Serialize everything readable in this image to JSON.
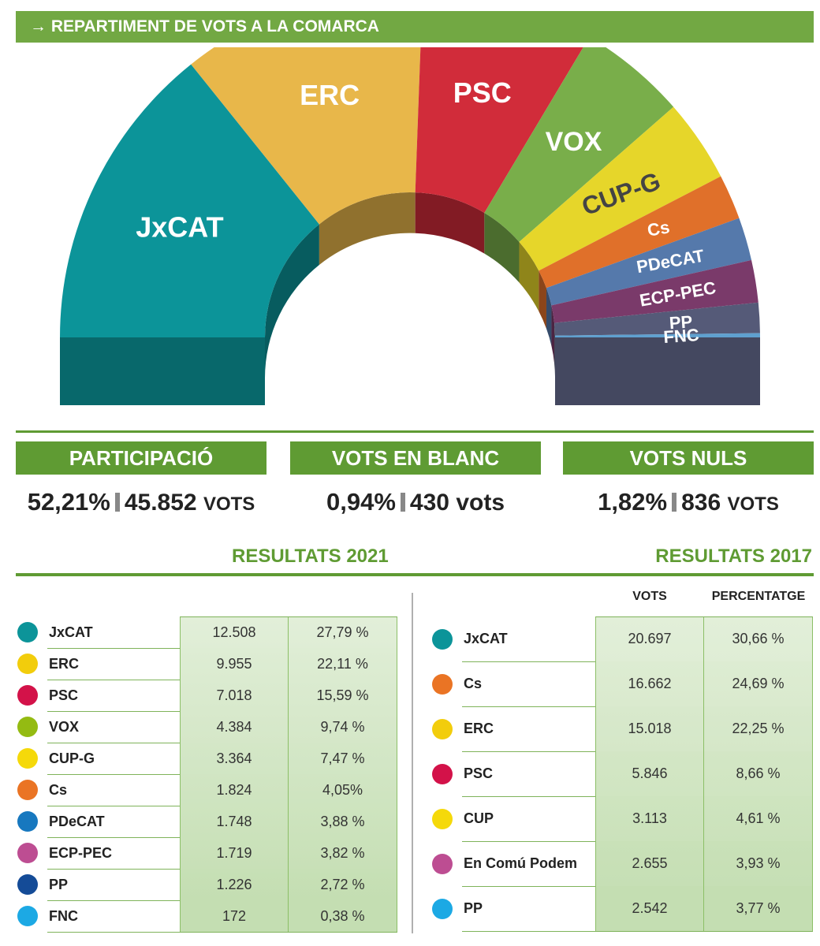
{
  "header": {
    "title": "→ REPARTIMENT DE VOTS A LA COMARCA"
  },
  "chart_data": {
    "type": "pie",
    "shape": "half-donut",
    "title": "REPARTIMENT DE VOTS A LA COMARCA",
    "categories": [
      "JxCAT",
      "ERC",
      "PSC",
      "VOX",
      "CUP-G",
      "Cs",
      "PDeCAT",
      "ECP-PEC",
      "PP",
      "FNC"
    ],
    "values": [
      27.79,
      22.11,
      15.59,
      9.74,
      7.47,
      4.05,
      3.88,
      3.82,
      2.72,
      0.38
    ],
    "colors": [
      "#0c9499",
      "#e8b74a",
      "#d12c3a",
      "#79ae4a",
      "#e6d62a",
      "#e0702a",
      "#5579ab",
      "#7a3a6a",
      "#555a78",
      "#5fa0cf"
    ],
    "label_colors": [
      "#ffffff",
      "#ffffff",
      "#ffffff",
      "#ffffff",
      "#444444",
      "#ffffff",
      "#ffffff",
      "#ffffff",
      "#ffffff",
      "#ffffff"
    ]
  },
  "stats": {
    "participacio": {
      "label": "PARTICIPACIÓ",
      "pct": "52,21%",
      "num": "45.852",
      "unit": "VOTS"
    },
    "blanc": {
      "label": "VOTS EN BLANC",
      "pct": "0,94%",
      "num": "430",
      "unit": "vots"
    },
    "nuls": {
      "label": "VOTS NULS",
      "pct": "1,82%",
      "num": "836",
      "unit": "VOTS"
    }
  },
  "results2021": {
    "title": "RESULTATS 2021",
    "rows": [
      {
        "party": "JxCAT",
        "votes": "12.508",
        "pct": "27,79 %",
        "color": "#0c9499"
      },
      {
        "party": "ERC",
        "votes": "9.955",
        "pct": "22,11 %",
        "color": "#f2cd0c"
      },
      {
        "party": "PSC",
        "votes": "7.018",
        "pct": "15,59 %",
        "color": "#d31249"
      },
      {
        "party": "VOX",
        "votes": "4.384",
        "pct": "9,74 %",
        "color": "#94bb12"
      },
      {
        "party": "CUP-G",
        "votes": "3.364",
        "pct": "7,47 %",
        "color": "#f5d90a"
      },
      {
        "party": "Cs",
        "votes": "1.824",
        "pct": "4,05%",
        "color": "#ea7424"
      },
      {
        "party": "PDeCAT",
        "votes": "1.748",
        "pct": "3,88 %",
        "color": "#1778bf"
      },
      {
        "party": "ECP-PEC",
        "votes": "1.719",
        "pct": "3,82 %",
        "color": "#bd4d92"
      },
      {
        "party": "PP",
        "votes": "1.226",
        "pct": "2,72 %",
        "color": "#144b97"
      },
      {
        "party": "FNC",
        "votes": "172",
        "pct": "0,38 %",
        "color": "#1ca9e4"
      }
    ]
  },
  "results2017": {
    "title": "RESULTATS 2017",
    "col_votes": "VOTS",
    "col_pct": "PERCENTATGE",
    "rows": [
      {
        "party": "JxCAT",
        "votes": "20.697",
        "pct": "30,66 %",
        "color": "#0c9499"
      },
      {
        "party": "Cs",
        "votes": "16.662",
        "pct": "24,69 %",
        "color": "#ea7424"
      },
      {
        "party": "ERC",
        "votes": "15.018",
        "pct": "22,25 %",
        "color": "#f2cd0c"
      },
      {
        "party": "PSC",
        "votes": "5.846",
        "pct": "8,66 %",
        "color": "#d31249"
      },
      {
        "party": "CUP",
        "votes": "3.113",
        "pct": "4,61 %",
        "color": "#f5d90a"
      },
      {
        "party": "En Comú Podem",
        "votes": "2.655",
        "pct": "3,93 %",
        "color": "#bd4d92"
      },
      {
        "party": "PP",
        "votes": "2.542",
        "pct": "3,77 %",
        "color": "#1ca9e4"
      }
    ]
  }
}
